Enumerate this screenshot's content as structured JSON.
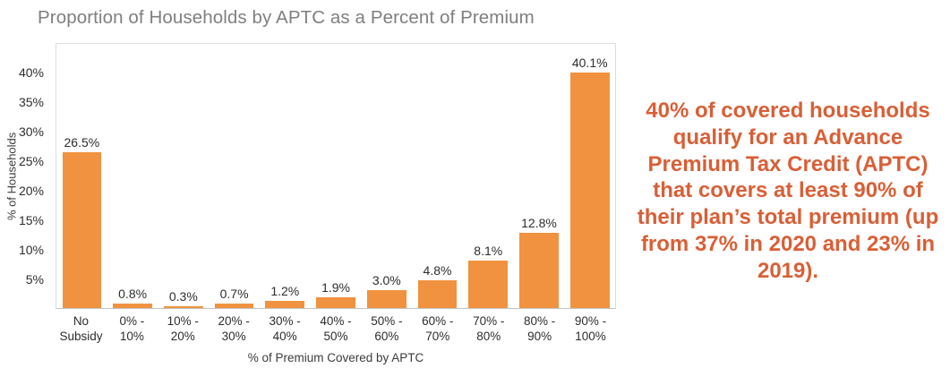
{
  "header": {
    "title": "Proportion of Households by APTC as a Percent of Premium",
    "title_color": "#7f7f7f"
  },
  "annotation": {
    "text": "40% of covered households qualify for an Advance Premium Tax Credit (APTC) that covers at least 90% of their plan’s total premium (up from 37% in 2020 and 23% in 2019).",
    "color": "#d95f36"
  },
  "chart_data": {
    "type": "bar",
    "title": "Proportion of Households by APTC as a Percent of Premium",
    "xlabel": "% of Premium Covered by APTC",
    "ylabel": "% of Households",
    "categories": [
      "No\nSubsidy",
      "0% -\n10%",
      "10% -\n20%",
      "20% -\n30%",
      "30% -\n40%",
      "40% -\n50%",
      "50% -\n60%",
      "60% -\n70%",
      "70% -\n80%",
      "80% -\n90%",
      "90% -\n100%"
    ],
    "values": [
      26.5,
      0.8,
      0.3,
      0.7,
      1.2,
      1.9,
      3.0,
      4.8,
      8.1,
      12.8,
      40.1
    ],
    "data_labels": [
      "26.5%",
      "0.8%",
      "0.3%",
      "0.7%",
      "1.2%",
      "1.9%",
      "3.0%",
      "4.8%",
      "8.1%",
      "12.8%",
      "40.1%"
    ],
    "y_ticks": [
      "5%",
      "10%",
      "15%",
      "20%",
      "25%",
      "30%",
      "35%",
      "40%"
    ],
    "y_tick_values": [
      5,
      10,
      15,
      20,
      25,
      30,
      35,
      40
    ],
    "ylim": [
      0,
      45
    ],
    "grid": false,
    "legend": "none",
    "bar_color": "#f0923f"
  }
}
